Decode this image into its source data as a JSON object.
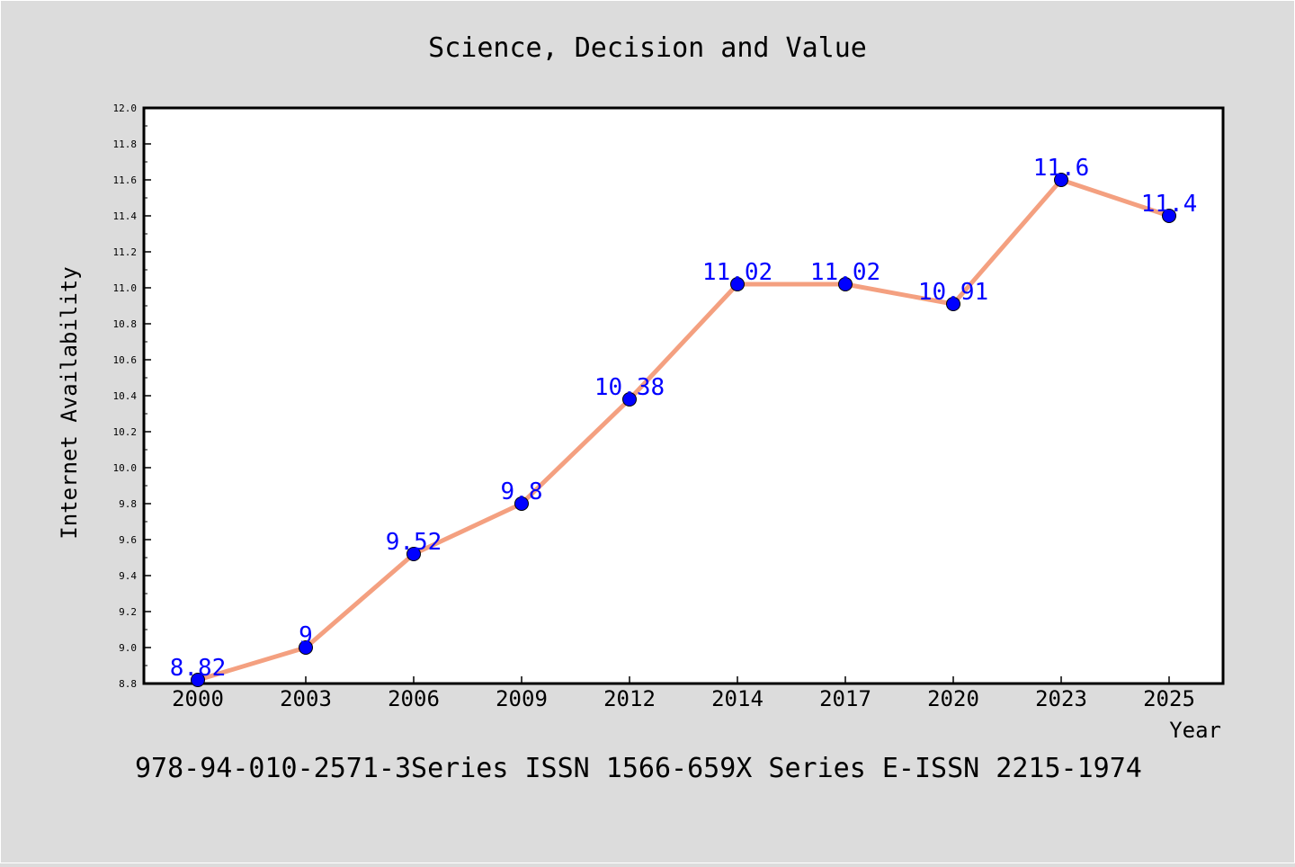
{
  "chart_data": {
    "type": "line",
    "title": "Science, Decision and Value",
    "xlabel": "Year",
    "ylabel": "Internet Availability",
    "footer": "978-94-010-2571-3Series ISSN 1566-659X Series E-ISSN 2215-1974",
    "categories": [
      "2000",
      "2003",
      "2006",
      "2009",
      "2012",
      "2014",
      "2017",
      "2020",
      "2023",
      "2025"
    ],
    "series": [
      {
        "values": [
          8.82,
          9,
          9.52,
          9.8,
          10.38,
          11.02,
          11.02,
          10.91,
          11.6,
          11.4
        ],
        "data_labels": [
          "8.82",
          "9",
          "9.52",
          "9.8",
          "10.38",
          "11.02",
          "11.02",
          "10.91",
          "11.6",
          "11.4"
        ],
        "line_color": "#f4a080",
        "marker_color": "#0000ff"
      }
    ],
    "ylim": [
      8.8,
      12.0
    ],
    "yticks": [
      "8.8",
      "9.0",
      "9.2",
      "9.4",
      "9.6",
      "9.8",
      "10.0",
      "10.2",
      "10.4",
      "10.6",
      "10.8",
      "11.0",
      "11.2",
      "11.4",
      "11.6",
      "11.8",
      "12.0"
    ],
    "grid": false,
    "legend": "none"
  }
}
